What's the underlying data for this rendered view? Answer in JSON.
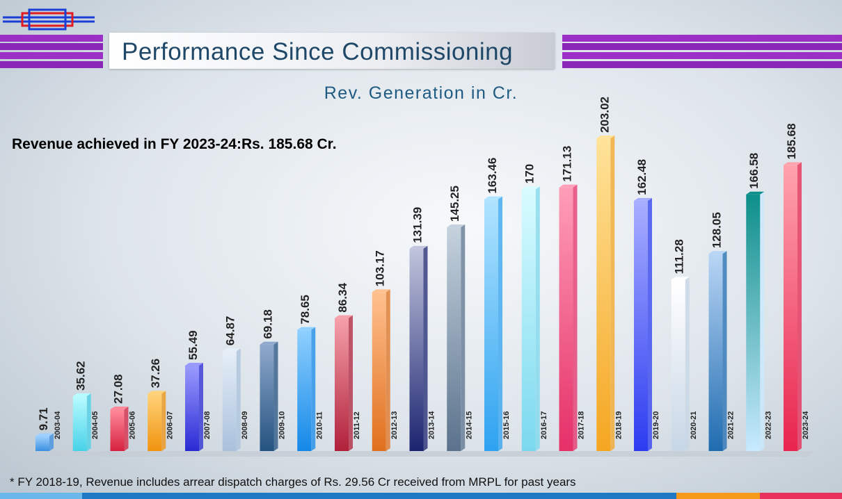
{
  "header": {
    "title": "Performance Since Commissioning",
    "subtitle": "Rev. Generation in Cr."
  },
  "note": "Revenue achieved in FY 2023-24:Rs. 185.68 Cr.",
  "footnote": "* FY 2018-19, Revenue includes  arrear dispatch charges of Rs. 29.56 Cr received from MRPL for past years",
  "chart_data": {
    "type": "bar",
    "title": "Rev. Generation in Cr.",
    "xlabel": "",
    "ylabel": "",
    "ylim": [
      0,
      203.02
    ],
    "grid": false,
    "legend": "none",
    "categories": [
      "2003-04",
      "2004-05",
      "2005-06",
      "2006-07",
      "2007-08",
      "2008-09",
      "2009-10",
      "2010-11",
      "2011-12",
      "2012-13",
      "2013-14",
      "2014-15",
      "2015-16",
      "2016-17",
      "2017-18",
      "2018-19",
      "2019-20",
      "2020-21",
      "2021-22",
      "2022-23",
      "2023-24"
    ],
    "values": [
      9.71,
      35.62,
      27.08,
      37.26,
      55.49,
      64.87,
      69.18,
      78.65,
      86.34,
      103.17,
      131.39,
      145.25,
      163.46,
      170,
      171.13,
      203.02,
      162.48,
      111.28,
      128.05,
      166.58,
      185.68
    ],
    "value_labels": [
      "9.71",
      "35.62",
      "27.08",
      "37.26",
      "55.49",
      "64.87",
      "69.18",
      "78.65",
      "86.34",
      "103.17",
      "131.39",
      "145.25",
      "163.46",
      "170",
      "171.13",
      "203.02",
      "162.48",
      "111.28",
      "128.05",
      "166.58",
      "185.68"
    ],
    "bar_colors": [
      [
        "#9fd0ff",
        "#3a8fe0"
      ],
      [
        "#b8fbff",
        "#48d2e8"
      ],
      [
        "#ff8a9a",
        "#d6213f"
      ],
      [
        "#ffd27a",
        "#f0930e"
      ],
      [
        "#9b9bff",
        "#2a2ad4"
      ],
      [
        "#e6eef8",
        "#a9c1dc"
      ],
      [
        "#8fa9cc",
        "#24527f"
      ],
      [
        "#8fd0ff",
        "#1488e8"
      ],
      [
        "#f5a0aa",
        "#b0203a"
      ],
      [
        "#ffc08f",
        "#e0701d"
      ],
      [
        "#c0c4dc",
        "#1c2470"
      ],
      [
        "#c5d2de",
        "#5a728c"
      ],
      [
        "#b0e4ff",
        "#2ea2f0"
      ],
      [
        "#d8fcff",
        "#7ad8ee"
      ],
      [
        "#ff9eb8",
        "#e52f68"
      ],
      [
        "#ffe39a",
        "#f5a621"
      ],
      [
        "#a8aeff",
        "#2c3cf0"
      ],
      [
        "#ffffff",
        "#c7d6e6"
      ],
      [
        "#b9d5f5",
        "#1f6cb0"
      ],
      [
        "#0d8f8a",
        "#c8eaff"
      ],
      [
        "#ffa3ad",
        "#e8244f"
      ]
    ]
  }
}
